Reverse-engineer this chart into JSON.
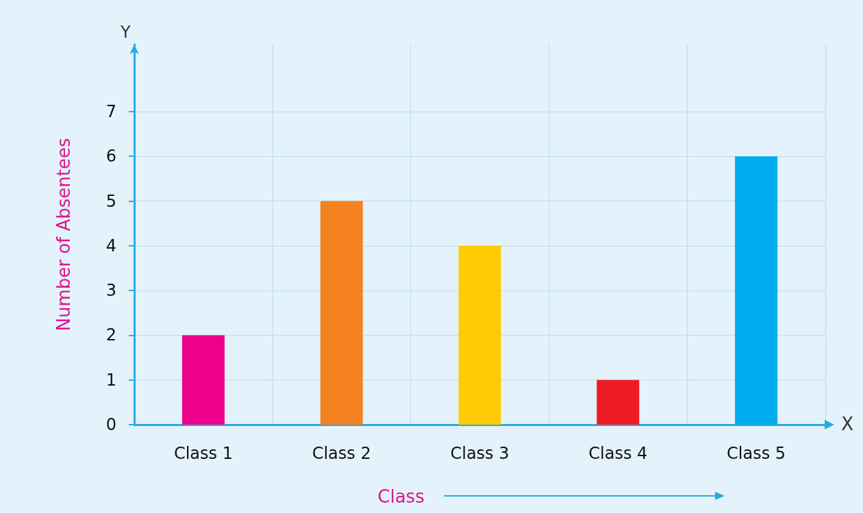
{
  "chart_data": {
    "type": "bar",
    "xlabel": "Class",
    "ylabel": "Number of Absentees",
    "categories": [
      "Class 1",
      "Class 2",
      "Class 3",
      "Class 4",
      "Class 5"
    ],
    "values": [
      2,
      5,
      4,
      1,
      6
    ],
    "colors": [
      "#ec008c",
      "#f58220",
      "#ffcb05",
      "#ed1c24",
      "#00aeef"
    ],
    "ylim": [
      0,
      8.5
    ],
    "yticks": [
      0,
      1,
      2,
      3,
      4,
      5,
      6,
      7
    ],
    "grid": true,
    "annotations": [
      "Y",
      "X"
    ]
  }
}
